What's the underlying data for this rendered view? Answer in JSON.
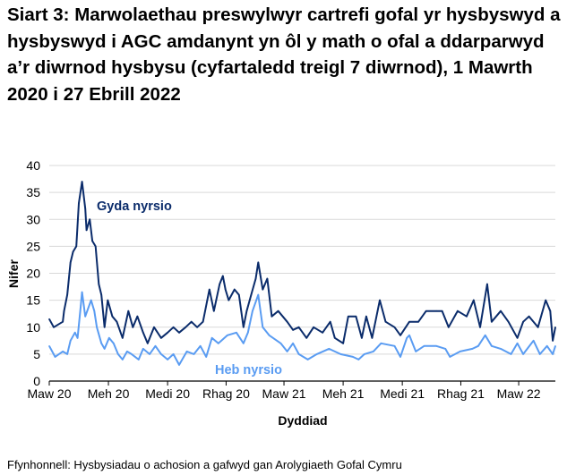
{
  "title": "Siart 3: Marwolaethau preswylwyr cartrefi gofal yr hysbyswyd a hysbyswyd i AGC amdanynt yn ôl y math o ofal a ddarparwyd a’r diwrnod hysbysu (cyfartaledd treigl 7 diwrnod), 1 Mawrth 2020 i 27 Ebrill 2022",
  "source": "Ffynhonnell: Hysbysiadau o achosion a gafwyd gan Arolygiaeth Gofal Cymru",
  "chart_data": {
    "type": "line",
    "xlabel": "Dyddiad",
    "ylabel": "Nifer",
    "ylim": [
      0,
      40
    ],
    "yticks": [
      0,
      5,
      10,
      15,
      20,
      25,
      30,
      35,
      40
    ],
    "xlim": [
      "2020-03-01",
      "2022-04-27"
    ],
    "xticks": [
      {
        "date": "2020-03-01",
        "label": "Maw 20"
      },
      {
        "date": "2020-06-01",
        "label": "Meh 20"
      },
      {
        "date": "2020-09-01",
        "label": "Medi 20"
      },
      {
        "date": "2020-12-01",
        "label": "Rhag 20"
      },
      {
        "date": "2021-03-01",
        "label": "Maw 21"
      },
      {
        "date": "2021-06-01",
        "label": "Meh 21"
      },
      {
        "date": "2021-09-01",
        "label": "Medi 21"
      },
      {
        "date": "2021-12-01",
        "label": "Rhag 21"
      },
      {
        "date": "2022-03-01",
        "label": "Maw 22"
      }
    ],
    "grid": "horizontal",
    "legend": "inline labels",
    "series": [
      {
        "name": "Gyda nyrsio",
        "color": "#0b2c6b",
        "points": [
          [
            "2020-03-01",
            11.5
          ],
          [
            "2020-03-08",
            10
          ],
          [
            "2020-03-22",
            11
          ],
          [
            "2020-03-24",
            13
          ],
          [
            "2020-03-29",
            16
          ],
          [
            "2020-04-03",
            22
          ],
          [
            "2020-04-07",
            24
          ],
          [
            "2020-04-12",
            25
          ],
          [
            "2020-04-16",
            33
          ],
          [
            "2020-04-21",
            37
          ],
          [
            "2020-04-26",
            32
          ],
          [
            "2020-04-28",
            28
          ],
          [
            "2020-05-03",
            30
          ],
          [
            "2020-05-07",
            26
          ],
          [
            "2020-05-12",
            25
          ],
          [
            "2020-05-17",
            18
          ],
          [
            "2020-05-21",
            16
          ],
          [
            "2020-05-26",
            10
          ],
          [
            "2020-05-31",
            15
          ],
          [
            "2020-06-07",
            12
          ],
          [
            "2020-06-14",
            11
          ],
          [
            "2020-06-23",
            8
          ],
          [
            "2020-07-02",
            13
          ],
          [
            "2020-07-09",
            10
          ],
          [
            "2020-07-16",
            12
          ],
          [
            "2020-07-25",
            9
          ],
          [
            "2020-08-01",
            7
          ],
          [
            "2020-08-11",
            10
          ],
          [
            "2020-08-22",
            8
          ],
          [
            "2020-09-01",
            9
          ],
          [
            "2020-09-10",
            10
          ],
          [
            "2020-09-19",
            9
          ],
          [
            "2020-09-29",
            10
          ],
          [
            "2020-10-08",
            11
          ],
          [
            "2020-10-17",
            10
          ],
          [
            "2020-10-26",
            11
          ],
          [
            "2020-11-05",
            17
          ],
          [
            "2020-11-12",
            13
          ],
          [
            "2020-11-21",
            18
          ],
          [
            "2020-11-26",
            19.5
          ],
          [
            "2020-11-30",
            17
          ],
          [
            "2020-12-05",
            15
          ],
          [
            "2020-12-14",
            17
          ],
          [
            "2020-12-21",
            16
          ],
          [
            "2020-12-28",
            10
          ],
          [
            "2021-01-02",
            13
          ],
          [
            "2021-01-09",
            16
          ],
          [
            "2021-01-16",
            19
          ],
          [
            "2021-01-20",
            22
          ],
          [
            "2021-01-27",
            17
          ],
          [
            "2021-02-03",
            19
          ],
          [
            "2021-02-10",
            12
          ],
          [
            "2021-02-20",
            13
          ],
          [
            "2021-03-06",
            11
          ],
          [
            "2021-03-15",
            9.5
          ],
          [
            "2021-03-24",
            10
          ],
          [
            "2021-04-05",
            8
          ],
          [
            "2021-04-16",
            10
          ],
          [
            "2021-04-30",
            9
          ],
          [
            "2021-05-12",
            11
          ],
          [
            "2021-05-19",
            8
          ],
          [
            "2021-06-01",
            7
          ],
          [
            "2021-06-09",
            12
          ],
          [
            "2021-06-21",
            12
          ],
          [
            "2021-06-30",
            8
          ],
          [
            "2021-07-07",
            12
          ],
          [
            "2021-07-16",
            8
          ],
          [
            "2021-07-28",
            15
          ],
          [
            "2021-08-06",
            11
          ],
          [
            "2021-08-20",
            10
          ],
          [
            "2021-08-29",
            8.5
          ],
          [
            "2021-09-12",
            11
          ],
          [
            "2021-09-26",
            11
          ],
          [
            "2021-10-08",
            13
          ],
          [
            "2021-10-24",
            13
          ],
          [
            "2021-11-02",
            13
          ],
          [
            "2021-11-12",
            10
          ],
          [
            "2021-11-26",
            13
          ],
          [
            "2021-12-10",
            12
          ],
          [
            "2021-12-21",
            15
          ],
          [
            "2021-12-31",
            10
          ],
          [
            "2022-01-11",
            18
          ],
          [
            "2022-01-18",
            11
          ],
          [
            "2022-02-01",
            13
          ],
          [
            "2022-02-13",
            11
          ],
          [
            "2022-02-27",
            8
          ],
          [
            "2022-03-08",
            11
          ],
          [
            "2022-03-17",
            12
          ],
          [
            "2022-03-31",
            10
          ],
          [
            "2022-04-12",
            15
          ],
          [
            "2022-04-19",
            13
          ],
          [
            "2022-04-23",
            7.5
          ],
          [
            "2022-04-27",
            10
          ]
        ]
      },
      {
        "name": "Heb nyrsio",
        "color": "#5a9cf2",
        "points": [
          [
            "2020-03-01",
            6.5
          ],
          [
            "2020-03-10",
            4.5
          ],
          [
            "2020-03-22",
            5.5
          ],
          [
            "2020-03-29",
            5
          ],
          [
            "2020-04-03",
            7.5
          ],
          [
            "2020-04-10",
            9
          ],
          [
            "2020-04-14",
            8
          ],
          [
            "2020-04-19",
            14
          ],
          [
            "2020-04-21",
            16.5
          ],
          [
            "2020-04-26",
            12
          ],
          [
            "2020-05-05",
            15
          ],
          [
            "2020-05-10",
            13
          ],
          [
            "2020-05-14",
            10
          ],
          [
            "2020-05-21",
            7
          ],
          [
            "2020-05-26",
            6
          ],
          [
            "2020-06-02",
            8
          ],
          [
            "2020-06-09",
            7
          ],
          [
            "2020-06-16",
            5
          ],
          [
            "2020-06-23",
            4
          ],
          [
            "2020-06-30",
            5.5
          ],
          [
            "2020-07-07",
            5
          ],
          [
            "2020-07-18",
            4
          ],
          [
            "2020-07-25",
            6
          ],
          [
            "2020-08-04",
            5
          ],
          [
            "2020-08-13",
            6.5
          ],
          [
            "2020-08-22",
            5
          ],
          [
            "2020-09-01",
            4
          ],
          [
            "2020-09-10",
            5
          ],
          [
            "2020-09-19",
            3
          ],
          [
            "2020-10-01",
            5.5
          ],
          [
            "2020-10-12",
            5
          ],
          [
            "2020-10-22",
            6.5
          ],
          [
            "2020-10-31",
            4.5
          ],
          [
            "2020-11-09",
            8
          ],
          [
            "2020-11-19",
            7
          ],
          [
            "2020-12-03",
            8.5
          ],
          [
            "2020-12-17",
            9
          ],
          [
            "2020-12-28",
            7
          ],
          [
            "2021-01-04",
            9
          ],
          [
            "2021-01-11",
            13
          ],
          [
            "2021-01-20",
            16
          ],
          [
            "2021-01-27",
            10
          ],
          [
            "2021-02-06",
            8.5
          ],
          [
            "2021-02-24",
            7
          ],
          [
            "2021-03-06",
            5.5
          ],
          [
            "2021-03-15",
            7
          ],
          [
            "2021-03-24",
            5
          ],
          [
            "2021-04-07",
            4
          ],
          [
            "2021-04-21",
            5
          ],
          [
            "2021-05-10",
            6
          ],
          [
            "2021-05-28",
            5
          ],
          [
            "2021-06-16",
            4.5
          ],
          [
            "2021-06-25",
            4
          ],
          [
            "2021-07-04",
            5
          ],
          [
            "2021-07-18",
            5.5
          ],
          [
            "2021-07-30",
            7
          ],
          [
            "2021-08-20",
            6.5
          ],
          [
            "2021-08-29",
            4.5
          ],
          [
            "2021-09-08",
            8
          ],
          [
            "2021-09-12",
            8.5
          ],
          [
            "2021-09-22",
            5.5
          ],
          [
            "2021-10-05",
            6.5
          ],
          [
            "2021-10-24",
            6.5
          ],
          [
            "2021-11-07",
            6
          ],
          [
            "2021-11-14",
            4.5
          ],
          [
            "2021-11-30",
            5.5
          ],
          [
            "2021-12-19",
            6
          ],
          [
            "2021-12-28",
            6.5
          ],
          [
            "2022-01-08",
            8.5
          ],
          [
            "2022-01-18",
            6.5
          ],
          [
            "2022-02-01",
            6
          ],
          [
            "2022-02-17",
            5
          ],
          [
            "2022-02-27",
            7
          ],
          [
            "2022-03-08",
            5
          ],
          [
            "2022-03-24",
            7.5
          ],
          [
            "2022-04-03",
            5
          ],
          [
            "2022-04-14",
            6.5
          ],
          [
            "2022-04-23",
            5
          ],
          [
            "2022-04-27",
            6.5
          ]
        ]
      }
    ]
  }
}
